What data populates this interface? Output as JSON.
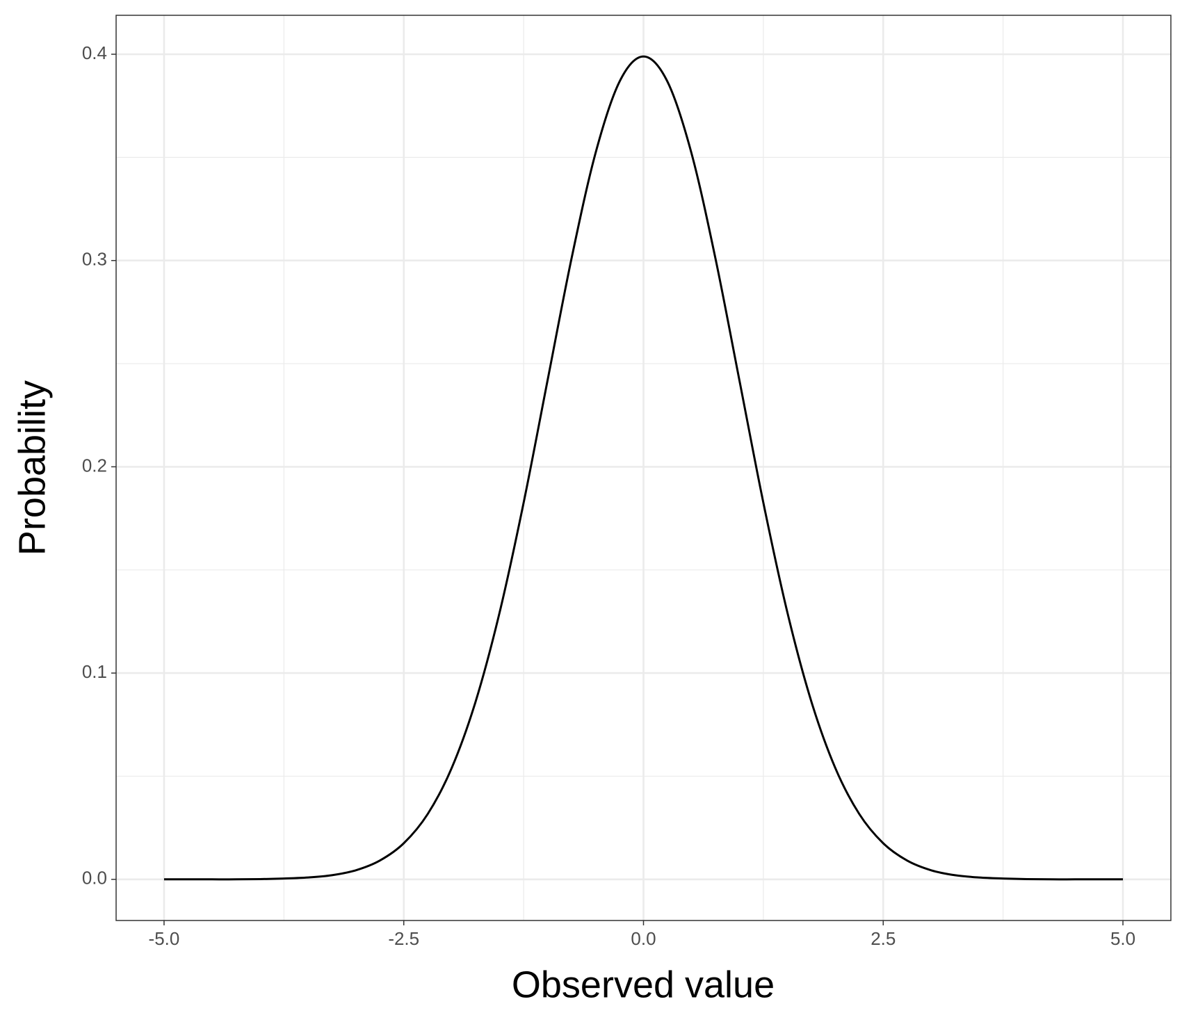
{
  "chart_data": {
    "type": "line",
    "x_label": "Observed value",
    "y_label": "Probability",
    "x": [
      -5,
      -4.75,
      -4.5,
      -4.25,
      -4,
      -3.75,
      -3.5,
      -3.25,
      -3,
      -2.75,
      -2.5,
      -2.25,
      -2,
      -1.75,
      -1.5,
      -1.25,
      -1,
      -0.75,
      -0.5,
      -0.25,
      0,
      0.25,
      0.5,
      0.75,
      1,
      1.25,
      1.5,
      1.75,
      2,
      2.25,
      2.5,
      2.75,
      3,
      3.25,
      3.5,
      3.75,
      4,
      4.25,
      4.5,
      4.75,
      5
    ],
    "series": [
      {
        "color": "#000000",
        "values": [
          0,
          0,
          0,
          0,
          0.0001,
          0.0004,
          0.0009,
          0.002,
          0.0044,
          0.0091,
          0.0175,
          0.0317,
          0.054,
          0.0863,
          0.1295,
          0.1826,
          0.242,
          0.3011,
          0.3521,
          0.3867,
          0.3989,
          0.3867,
          0.3521,
          0.3011,
          0.242,
          0.1826,
          0.1295,
          0.0863,
          0.054,
          0.0317,
          0.0175,
          0.0091,
          0.0044,
          0.002,
          0.0009,
          0.0004,
          0.0001,
          0,
          0,
          0,
          0
        ]
      }
    ],
    "xlim": [
      -5.5,
      5.5
    ],
    "ylim": [
      -0.01995,
      0.41888
    ],
    "xticks": [
      {
        "value": -5,
        "label": "-5.0"
      },
      {
        "value": -2.5,
        "label": "-2.5"
      },
      {
        "value": 0,
        "label": "0.0"
      },
      {
        "value": 2.5,
        "label": "2.5"
      },
      {
        "value": 5,
        "label": "5.0"
      }
    ],
    "yticks": [
      {
        "value": 0,
        "label": "0.0"
      },
      0.1,
      0.2,
      0.3,
      0.4
    ],
    "x_minor_grid": [
      -3.75,
      -1.25,
      1.25,
      3.75
    ],
    "y_minor_grid": [
      0.05,
      0.15,
      0.25,
      0.35
    ],
    "grid": true
  }
}
